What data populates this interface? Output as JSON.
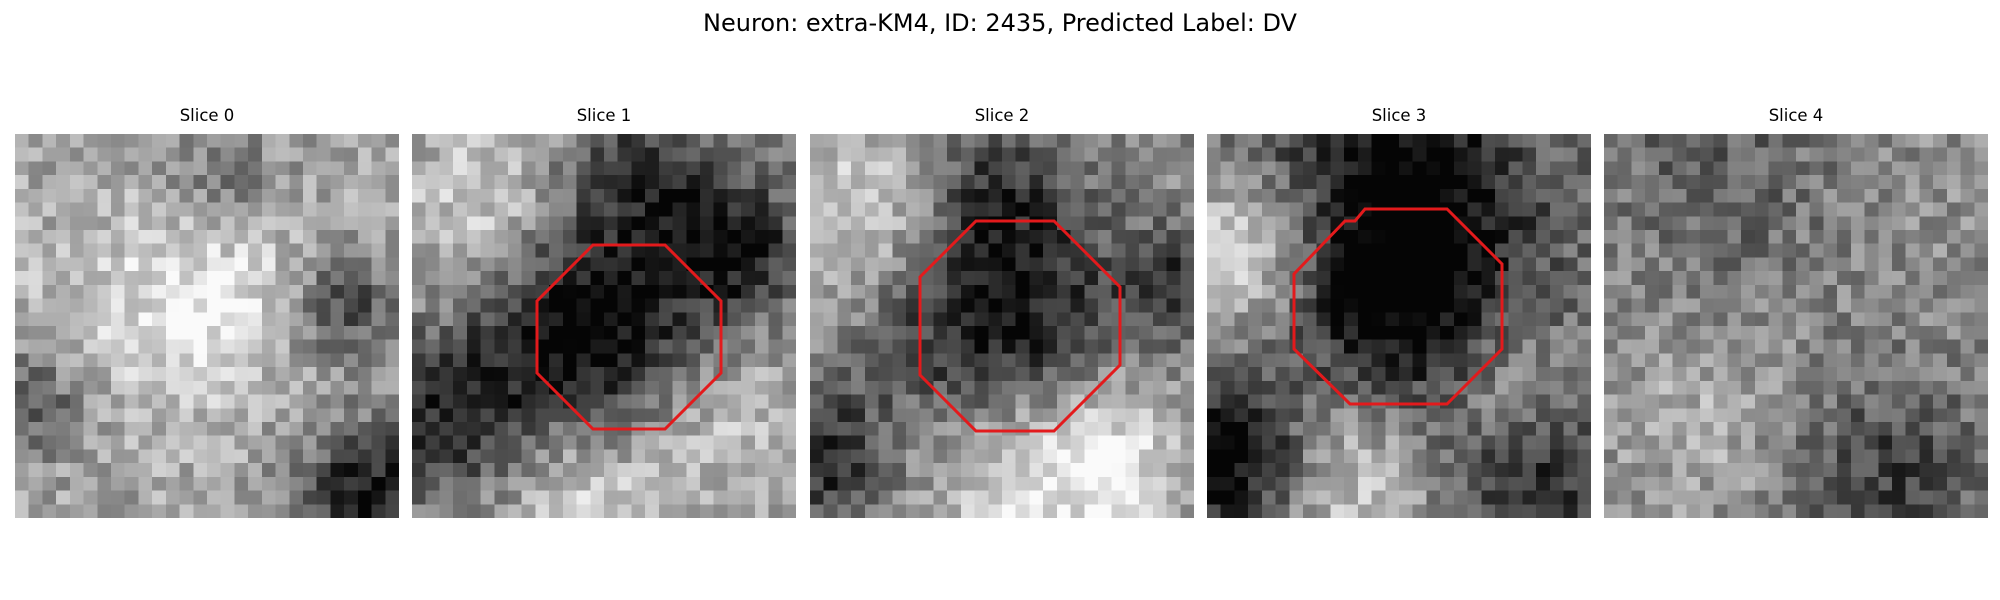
{
  "figure": {
    "title": "Neuron: extra-KM4, ID: 2435, Predicted Label: DV",
    "outline_color": "#e31a1c"
  },
  "panels": [
    {
      "title": "Slice 0",
      "has_outline": false,
      "mean_level": 0.62,
      "dark_spots": [
        [
          0.92,
          0.93,
          0.12,
          0.55
        ],
        [
          0.85,
          0.45,
          0.1,
          0.4
        ],
        [
          0.05,
          0.7,
          0.1,
          0.35
        ],
        [
          0.55,
          0.15,
          0.12,
          0.25
        ]
      ],
      "bright_spots": [
        [
          0.55,
          0.37,
          0.18,
          0.25
        ],
        [
          0.3,
          0.5,
          0.25,
          0.15
        ]
      ]
    },
    {
      "title": "Slice 1",
      "has_outline": true,
      "mean_level": 0.55,
      "dark_spots": [
        [
          0.45,
          0.52,
          0.2,
          0.65
        ],
        [
          0.1,
          0.75,
          0.15,
          0.4
        ],
        [
          0.85,
          0.3,
          0.12,
          0.45
        ],
        [
          0.6,
          0.12,
          0.15,
          0.35
        ]
      ],
      "bright_spots": [
        [
          0.2,
          0.2,
          0.18,
          0.3
        ],
        [
          0.45,
          0.92,
          0.2,
          0.3
        ],
        [
          0.85,
          0.75,
          0.15,
          0.2
        ]
      ]
    },
    {
      "title": "Slice 2",
      "has_outline": true,
      "mean_level": 0.55,
      "dark_spots": [
        [
          0.48,
          0.47,
          0.22,
          0.55
        ],
        [
          0.05,
          0.85,
          0.12,
          0.4
        ],
        [
          0.95,
          0.4,
          0.1,
          0.35
        ],
        [
          0.45,
          0.12,
          0.15,
          0.3
        ]
      ],
      "bright_spots": [
        [
          0.2,
          0.2,
          0.18,
          0.35
        ],
        [
          0.55,
          0.9,
          0.2,
          0.35
        ],
        [
          0.8,
          0.82,
          0.15,
          0.25
        ]
      ]
    },
    {
      "title": "Slice 3",
      "has_outline": true,
      "mean_level": 0.5,
      "dark_spots": [
        [
          0.5,
          0.45,
          0.22,
          0.5
        ],
        [
          0.07,
          0.85,
          0.14,
          0.6
        ],
        [
          0.5,
          0.07,
          0.25,
          0.45
        ],
        [
          0.85,
          0.9,
          0.15,
          0.35
        ]
      ],
      "bright_spots": [
        [
          0.12,
          0.3,
          0.15,
          0.45
        ],
        [
          0.35,
          0.88,
          0.18,
          0.35
        ],
        [
          0.78,
          0.65,
          0.12,
          0.25
        ]
      ]
    },
    {
      "title": "Slice 4",
      "has_outline": false,
      "mean_level": 0.55,
      "dark_spots": [
        [
          0.75,
          0.88,
          0.18,
          0.3
        ],
        [
          0.3,
          0.1,
          0.2,
          0.2
        ]
      ],
      "bright_spots": [
        [
          0.25,
          0.75,
          0.15,
          0.15
        ]
      ]
    }
  ]
}
